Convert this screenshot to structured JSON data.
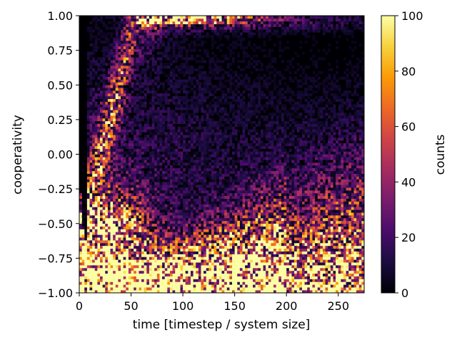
{
  "chart_data": {
    "type": "heatmap",
    "title": "",
    "xlabel": "time [timestep / system size]",
    "ylabel": "cooperativity",
    "xlim": [
      0,
      275
    ],
    "ylim": [
      -1.0,
      1.0
    ],
    "x_ticks": [
      0,
      50,
      100,
      150,
      200,
      250
    ],
    "x_tick_labels": [
      "0",
      "50",
      "100",
      "150",
      "200",
      "250"
    ],
    "y_ticks": [
      -1.0,
      -0.75,
      -0.5,
      -0.25,
      0.0,
      0.25,
      0.5,
      0.75,
      1.0
    ],
    "y_tick_labels": [
      "−1.00",
      "−0.75",
      "−0.50",
      "−0.25",
      "0.00",
      "0.25",
      "0.50",
      "0.75",
      "1.00"
    ],
    "grid": false,
    "colorbar": {
      "label": "counts",
      "colormap": "inferno",
      "range": [
        0,
        100
      ],
      "ticks": [
        0,
        20,
        40,
        60,
        80,
        100
      ],
      "tick_labels": [
        "0",
        "20",
        "40",
        "60",
        "80",
        "100"
      ]
    },
    "colormap_stops": [
      "#000004",
      "#1b0c41",
      "#4a0c6b",
      "#781c6d",
      "#a52c60",
      "#cf4446",
      "#ed6925",
      "#fb9b06",
      "#f7d13d",
      "#fcffa4"
    ]
  }
}
